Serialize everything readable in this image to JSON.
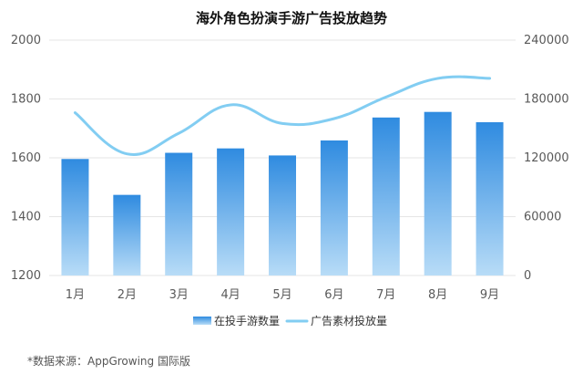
{
  "chart_data": {
    "type": "bar+line",
    "title": "海外角色扮演手游广告投放趋势",
    "categories": [
      "1月",
      "2月",
      "3月",
      "4月",
      "5月",
      "6月",
      "7月",
      "8月",
      "9月"
    ],
    "series": [
      {
        "name": "在投手游数量",
        "type": "bar",
        "axis": "left",
        "values": [
          1596,
          1474,
          1617,
          1632,
          1608,
          1659,
          1737,
          1756,
          1721
        ]
      },
      {
        "name": "广告素材投放量",
        "type": "line",
        "axis": "right",
        "values": [
          166000,
          124000,
          145000,
          174000,
          155000,
          160000,
          182000,
          201000,
          201000
        ]
      }
    ],
    "y_left": {
      "ylim": [
        1200,
        2000
      ],
      "ticks": [
        "1200",
        "1400",
        "1600",
        "1800",
        "2000"
      ]
    },
    "y_right": {
      "ylim": [
        0,
        240000
      ],
      "ticks": [
        "0",
        "60000",
        "120000",
        "180000",
        "240000"
      ]
    },
    "grid": true,
    "legend_position": "bottom",
    "colors": {
      "bar_top": "#2f8be0",
      "bar_bottom": "#b8dcf7",
      "line": "#82cdf2",
      "grid": "#e6e6e6"
    }
  },
  "footer": {
    "source": "*数据来源：AppGrowing 国际版"
  }
}
